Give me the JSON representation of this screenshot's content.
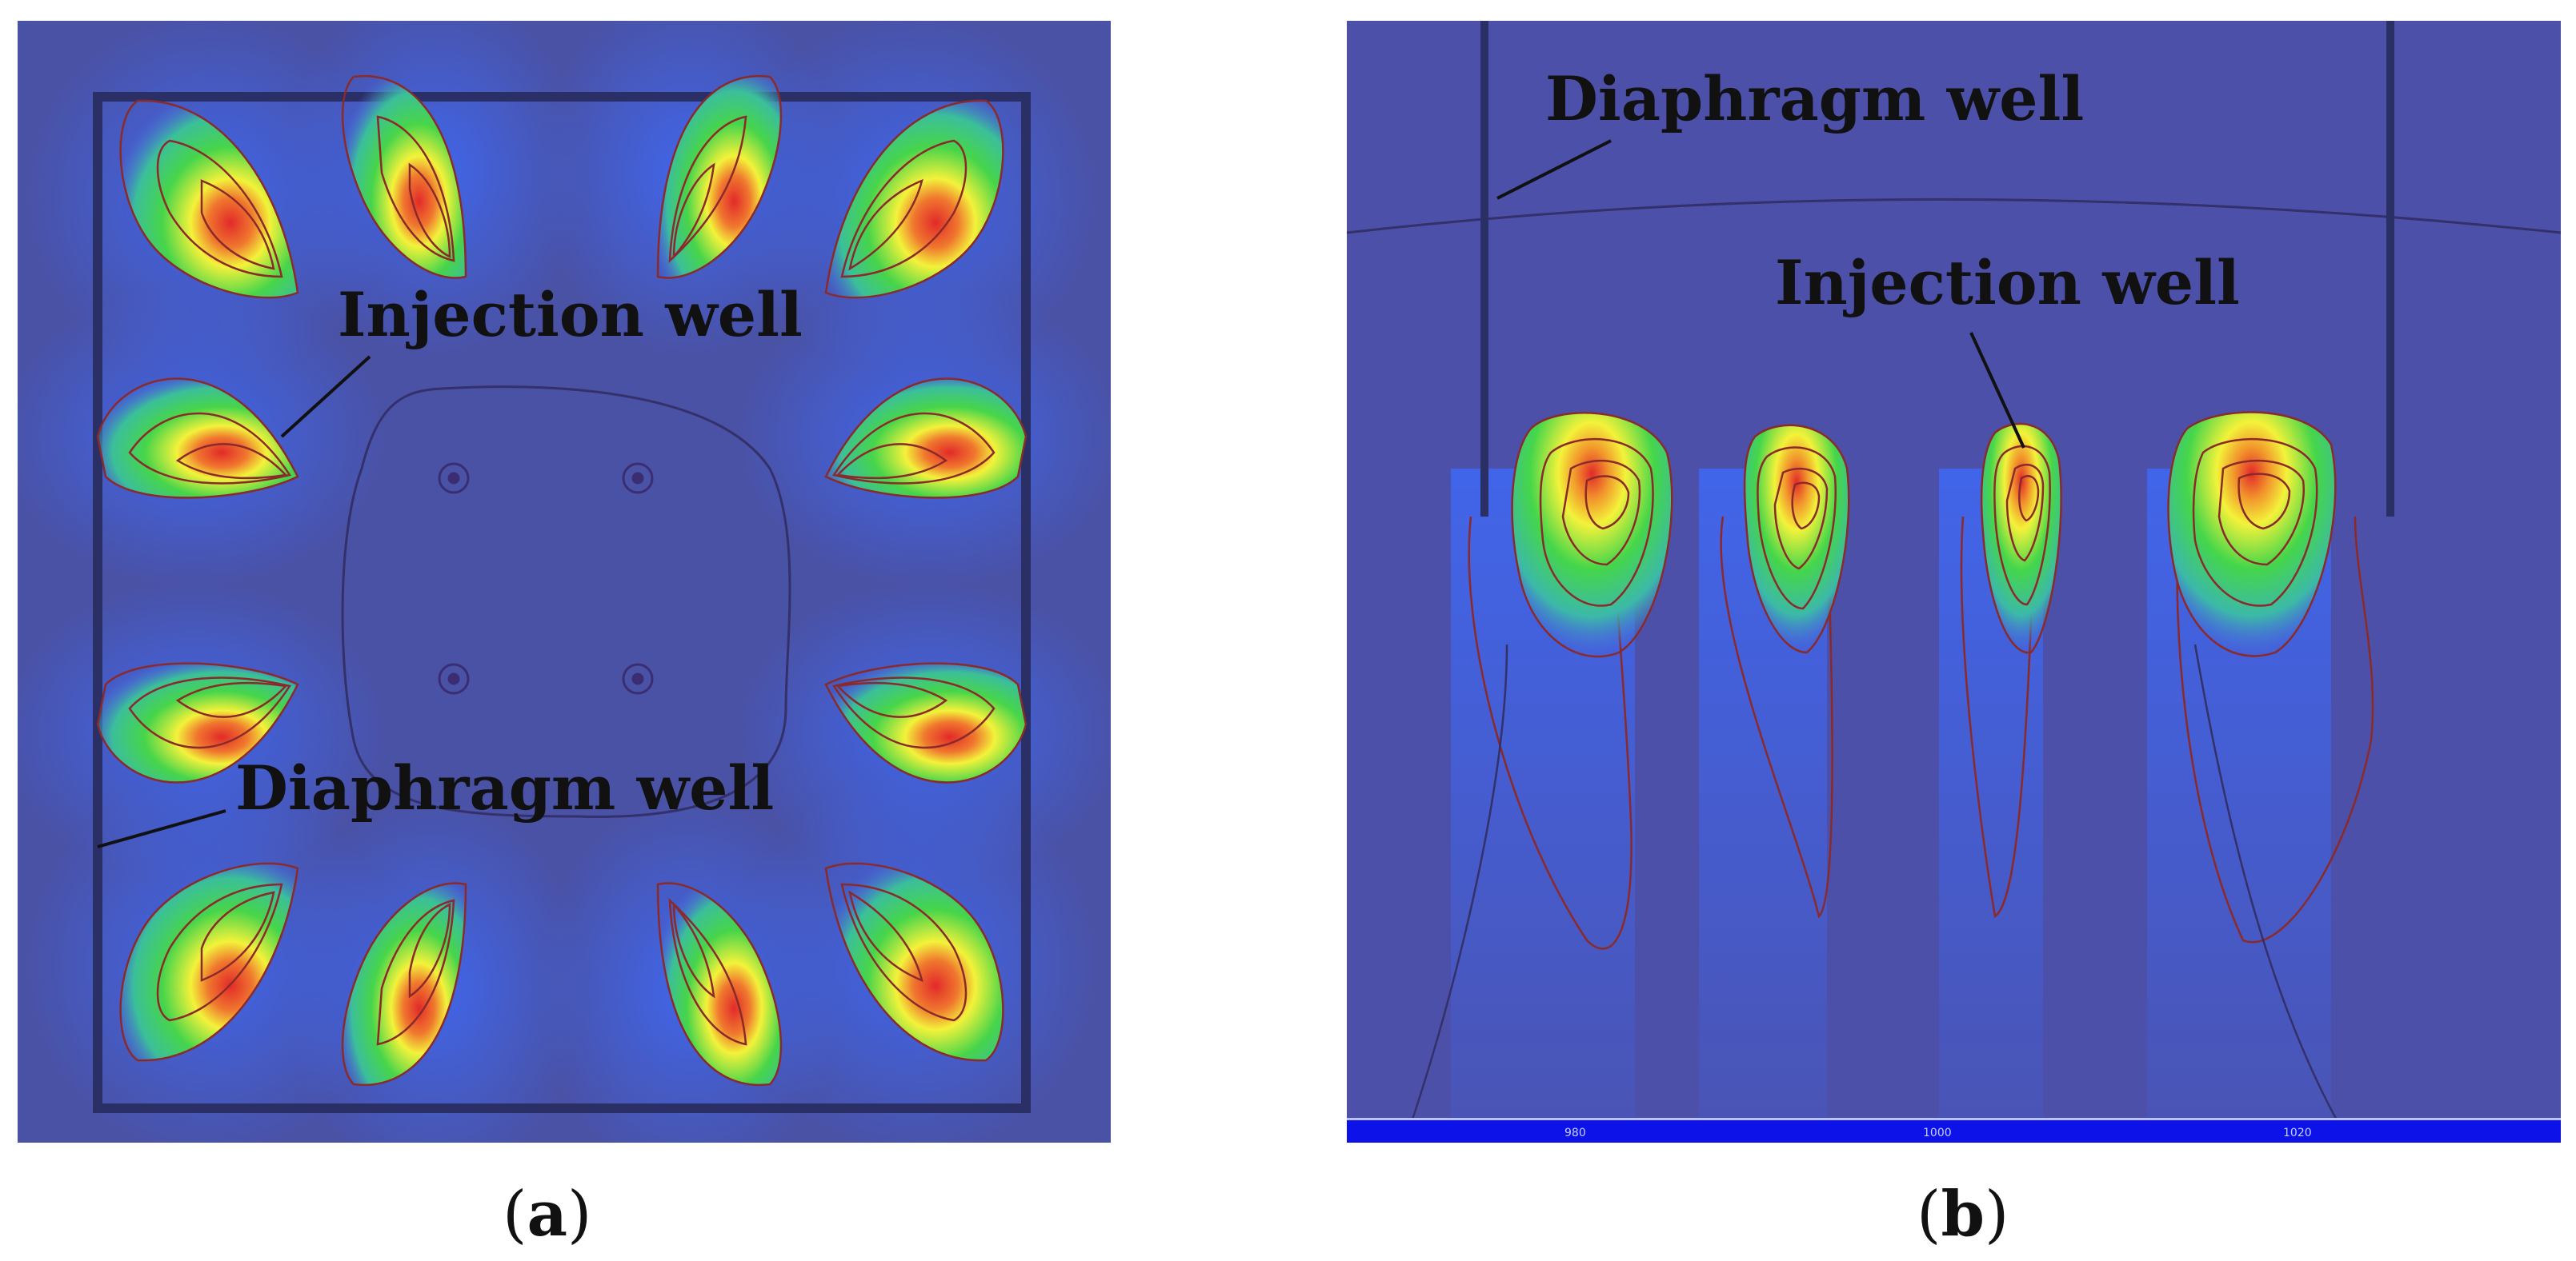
{
  "panel_a": {
    "labels": {
      "injection": "Injection well",
      "diaphragm": "Diaphragm well"
    },
    "caption": {
      "open": "(",
      "letter": "a",
      "close": ")"
    }
  },
  "panel_b": {
    "labels": {
      "diaphragm": "Diaphragm well",
      "injection": "Injection well"
    },
    "axis_ticks": [
      "980",
      "1000",
      "1020"
    ],
    "caption": {
      "open": "(",
      "letter": "b",
      "close": ")"
    }
  },
  "colors": {
    "background": "#4a52a6",
    "low": "#3f5cff",
    "mid": "#3fdc5a",
    "high_yellow": "#f4f53c",
    "peak": "#e8312a",
    "contour": "#8a2a2a",
    "wall": "#2a2f66"
  }
}
